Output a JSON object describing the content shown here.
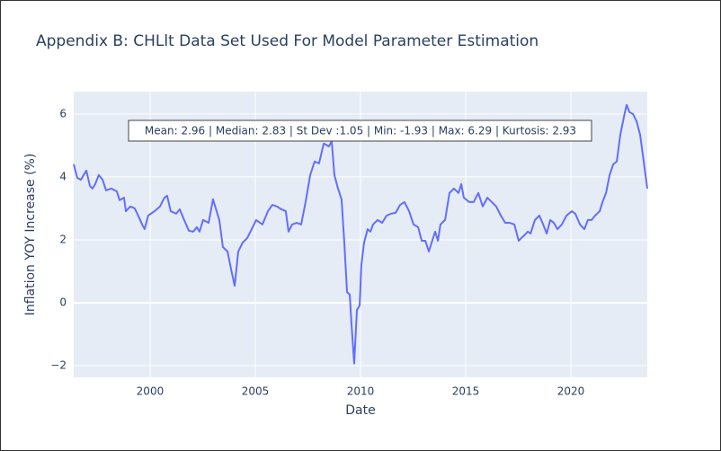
{
  "chart_data": {
    "type": "line",
    "title": "Appendix B: CHLlt Data Set Used For Model Parameter Estimation",
    "x_label": "Date",
    "y_label": "Inflation YOY Increase (%)",
    "annotation": "Mean: 2.96 | Median: 2.83 | St Dev :1.05 | Min: -1.93 | Max: 6.29 | Kurtosis: 2.93",
    "color": "#636efa",
    "grid": true,
    "xlim": [
      1996.37,
      2023.63
    ],
    "xticks": [
      2000,
      2005,
      2010,
      2015,
      2020
    ],
    "ylim": [
      -2.37,
      6.71
    ],
    "yticks": [
      {
        "value": -2,
        "label": "−2"
      },
      0,
      2,
      4,
      6
    ],
    "x": [
      1996.37,
      1996.54,
      1996.71,
      1996.97,
      1997.14,
      1997.26,
      1997.39,
      1997.56,
      1997.74,
      1997.91,
      1998.16,
      1998.42,
      1998.55,
      1998.76,
      1998.85,
      1999.06,
      1999.27,
      1999.49,
      1999.62,
      1999.74,
      1999.91,
      2000.21,
      2000.47,
      2000.68,
      2000.81,
      2000.98,
      2001.24,
      2001.41,
      2001.62,
      2001.84,
      2002.05,
      2002.22,
      2002.35,
      2002.52,
      2002.78,
      2002.99,
      2003.29,
      2003.46,
      2003.68,
      2003.85,
      2004.02,
      2004.19,
      2004.4,
      2004.62,
      2004.83,
      2005.04,
      2005.34,
      2005.6,
      2005.81,
      2006.03,
      2006.24,
      2006.45,
      2006.58,
      2006.75,
      2006.97,
      2007.18,
      2007.39,
      2007.61,
      2007.82,
      2008.03,
      2008.25,
      2008.5,
      2008.63,
      2008.76,
      2008.93,
      2009.1,
      2009.23,
      2009.36,
      2009.49,
      2009.57,
      2009.7,
      2009.83,
      2009.96,
      2010.04,
      2010.17,
      2010.34,
      2010.47,
      2010.6,
      2010.81,
      2011.03,
      2011.24,
      2011.45,
      2011.67,
      2011.88,
      2012.09,
      2012.31,
      2012.52,
      2012.74,
      2012.91,
      2013.08,
      2013.25,
      2013.38,
      2013.55,
      2013.68,
      2013.8,
      2014.02,
      2014.23,
      2014.44,
      2014.66,
      2014.79,
      2014.91,
      2015.17,
      2015.38,
      2015.6,
      2015.81,
      2016.03,
      2016.24,
      2016.45,
      2016.67,
      2016.88,
      2017.09,
      2017.31,
      2017.52,
      2017.65,
      2017.78,
      2017.95,
      2018.08,
      2018.29,
      2018.5,
      2018.68,
      2018.85,
      2019.02,
      2019.19,
      2019.36,
      2019.57,
      2019.79,
      2020.04,
      2020.21,
      2020.43,
      2020.64,
      2020.81,
      2020.98,
      2021.15,
      2021.37,
      2021.5,
      2021.67,
      2021.84,
      2022.01,
      2022.18,
      2022.35,
      2022.52,
      2022.65,
      2022.78,
      2022.95,
      2023.12,
      2023.29,
      2023.46,
      2023.63
    ],
    "values": [
      4.4,
      3.97,
      3.91,
      4.2,
      3.71,
      3.63,
      3.77,
      4.06,
      3.91,
      3.57,
      3.63,
      3.54,
      3.26,
      3.34,
      2.91,
      3.06,
      3.0,
      2.69,
      2.49,
      2.34,
      2.77,
      2.91,
      3.06,
      3.34,
      3.4,
      2.91,
      2.83,
      2.97,
      2.63,
      2.29,
      2.26,
      2.4,
      2.26,
      2.63,
      2.54,
      3.29,
      2.63,
      1.77,
      1.63,
      1.06,
      0.54,
      1.63,
      1.91,
      2.06,
      2.34,
      2.63,
      2.49,
      2.91,
      3.11,
      3.06,
      2.97,
      2.91,
      2.26,
      2.49,
      2.54,
      2.49,
      3.2,
      4.06,
      4.49,
      4.43,
      5.06,
      4.97,
      5.14,
      4.06,
      3.63,
      3.29,
      1.91,
      0.34,
      0.26,
      -0.66,
      -1.93,
      -0.23,
      -0.09,
      1.2,
      1.91,
      2.34,
      2.26,
      2.49,
      2.63,
      2.54,
      2.77,
      2.83,
      2.86,
      3.11,
      3.2,
      2.91,
      2.49,
      2.4,
      1.97,
      1.97,
      1.63,
      1.91,
      2.26,
      1.97,
      2.49,
      2.63,
      3.49,
      3.63,
      3.49,
      3.77,
      3.34,
      3.2,
      3.2,
      3.49,
      3.06,
      3.34,
      3.2,
      3.06,
      2.77,
      2.54,
      2.54,
      2.49,
      1.97,
      2.06,
      2.14,
      2.26,
      2.2,
      2.63,
      2.77,
      2.49,
      2.2,
      2.63,
      2.54,
      2.34,
      2.49,
      2.77,
      2.91,
      2.83,
      2.49,
      2.34,
      2.63,
      2.63,
      2.77,
      2.91,
      3.2,
      3.49,
      4.06,
      4.4,
      4.49,
      5.34,
      5.91,
      6.29,
      6.06,
      6.0,
      5.77,
      5.34,
      4.49,
      3.63
    ]
  }
}
